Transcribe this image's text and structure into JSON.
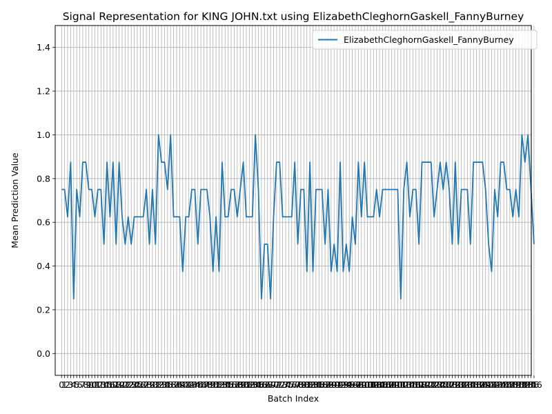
{
  "chart_data": {
    "type": "line",
    "title": "Signal Representation for KING JOHN.txt using ElizabethCleghornGaskell_FannyBurney",
    "xlabel": "Batch Index",
    "ylabel": "Mean Prediction Value",
    "xlim": [
      -2.1,
      155.1
    ],
    "ylim": [
      -0.1,
      1.5
    ],
    "yticks": [
      "0.0",
      "0.2",
      "0.4",
      "0.6",
      "0.8",
      "1.0",
      "1.2",
      "1.4"
    ],
    "ytick_values": [
      0.0,
      0.2,
      0.4,
      0.6,
      0.8,
      1.0,
      1.2,
      1.4
    ],
    "x_tick_step": 1,
    "grid": true,
    "legend": "upper right",
    "colors": {
      "series": "#1f77b4"
    },
    "series": [
      {
        "name": "ElizabethCleghornGaskell_FannyBurney",
        "values": [
          0.75,
          0.75,
          0.625,
          0.875,
          0.25,
          0.75,
          0.625,
          0.875,
          0.875,
          0.75,
          0.75,
          0.625,
          0.75,
          0.75,
          0.5,
          0.875,
          0.625,
          0.875,
          0.5,
          0.875,
          0.625,
          0.5,
          0.625,
          0.5,
          0.625,
          0.625,
          0.625,
          0.625,
          0.75,
          0.5,
          0.75,
          0.5,
          1.0,
          0.875,
          0.875,
          0.75,
          1.0,
          0.625,
          0.625,
          0.625,
          0.375,
          0.625,
          0.625,
          0.75,
          0.75,
          0.5,
          0.75,
          0.75,
          0.75,
          0.625,
          0.375,
          0.625,
          0.375,
          0.875,
          0.625,
          0.625,
          0.75,
          0.75,
          0.625,
          0.75,
          0.875,
          0.625,
          0.625,
          0.625,
          1.0,
          0.75,
          0.25,
          0.5,
          0.5,
          0.25,
          0.625,
          0.875,
          0.875,
          0.625,
          0.625,
          0.625,
          0.625,
          0.875,
          0.5,
          0.75,
          0.75,
          0.375,
          0.875,
          0.375,
          0.75,
          0.75,
          0.75,
          0.5,
          0.75,
          0.375,
          0.5,
          0.375,
          0.875,
          0.375,
          0.5,
          0.375,
          0.625,
          0.5,
          0.875,
          0.625,
          0.875,
          0.625,
          0.625,
          0.625,
          0.75,
          0.625,
          0.75,
          0.75,
          0.75,
          0.75,
          0.75,
          0.75,
          0.25,
          0.75,
          0.875,
          0.625,
          0.75,
          0.75,
          0.5,
          0.875,
          0.875,
          0.875,
          0.875,
          0.625,
          0.75,
          0.875,
          0.75,
          0.875,
          0.75,
          0.5,
          0.875,
          0.5,
          0.75,
          0.75,
          0.75,
          0.5,
          0.875,
          0.875,
          0.875,
          0.875,
          0.75,
          0.5,
          0.375,
          0.75,
          0.625,
          0.875,
          0.875,
          0.75,
          0.75,
          0.625,
          0.75,
          0.625,
          1.0,
          0.875,
          1.0,
          0.75,
          0.5
        ]
      }
    ]
  }
}
